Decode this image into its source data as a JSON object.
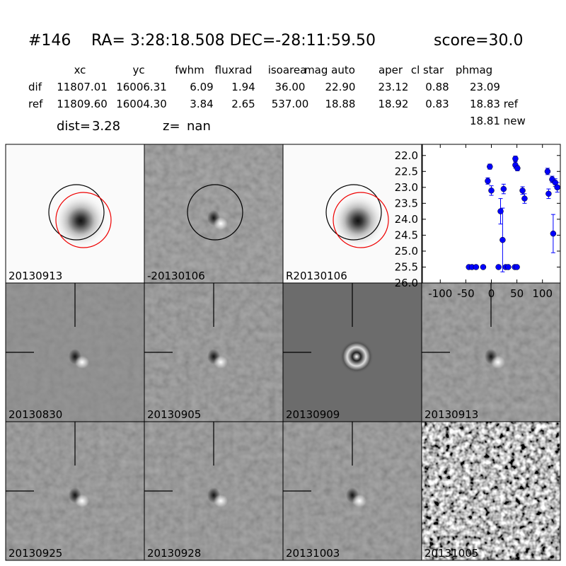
{
  "header": {
    "id": "#146",
    "coords": "RA= 3:28:18.508 DEC=-28:11:59.50",
    "score": "score=30.0"
  },
  "table": {
    "columns": [
      "xc",
      "yc",
      "fwhm",
      "fluxrad",
      "isoarea",
      "mag auto",
      "aper",
      "cl star",
      "phmag"
    ],
    "rows": [
      {
        "label": "dif",
        "values": [
          "11807.01",
          "16006.31",
          "6.09",
          "1.94",
          "36.00",
          "22.90",
          "23.12",
          "0.88",
          "23.09"
        ]
      },
      {
        "label": "ref",
        "values": [
          "11809.60",
          "16004.30",
          "3.84",
          "2.65",
          "537.00",
          "18.88",
          "18.92",
          "0.83",
          "18.83 ref"
        ]
      }
    ],
    "extra": "18.81 new"
  },
  "info": {
    "dist_label": "dist=",
    "dist": "3.28",
    "z_label": "z=",
    "z": "nan"
  },
  "panels": [
    {
      "label": "20130913"
    },
    {
      "label": "-20130106"
    },
    {
      "label": "R20130106"
    },
    {
      "label": "20130830"
    },
    {
      "label": "20130905"
    },
    {
      "label": "20130909"
    },
    {
      "label": "20130913",
      "label_color": "#ff0000"
    },
    {
      "label": "20130925"
    },
    {
      "label": "20130928"
    },
    {
      "label": "20131003"
    },
    {
      "label": "20131005"
    }
  ],
  "chart_data": {
    "type": "scatter",
    "color": "#0000ff",
    "x": [
      -44,
      -38,
      -30,
      -16,
      -7,
      -3,
      0,
      14,
      18,
      22,
      24,
      28,
      33,
      46,
      47,
      47,
      50,
      51,
      61,
      65,
      110,
      112,
      119,
      121,
      125,
      129
    ],
    "values": [
      25.5,
      25.5,
      25.5,
      25.5,
      22.8,
      22.35,
      23.1,
      25.5,
      23.75,
      24.65,
      23.05,
      25.5,
      25.5,
      25.5,
      22.1,
      22.3,
      25.5,
      22.4,
      23.1,
      23.35,
      22.5,
      23.2,
      22.75,
      24.45,
      22.85,
      23.0
    ],
    "errors": [
      0.05,
      0.05,
      0.05,
      0.05,
      0.1,
      0.08,
      0.15,
      0.05,
      0.4,
      1.0,
      0.15,
      0.05,
      0.05,
      0.05,
      0.08,
      0.1,
      0.05,
      0.08,
      0.12,
      0.15,
      0.1,
      0.15,
      0.1,
      0.6,
      0.12,
      0.15
    ],
    "xlim": [
      -135,
      135
    ],
    "xticks": [
      -100,
      -50,
      0,
      50,
      100
    ],
    "ylim": [
      26.0,
      21.65
    ],
    "y_inverted": true,
    "yticks": [
      {
        "value": 22,
        "label": "22.0"
      },
      {
        "value": 22.5,
        "label": "22.5"
      },
      {
        "value": 23,
        "label": "23.0"
      },
      {
        "value": 23.5,
        "label": "23.5"
      },
      {
        "value": 24,
        "label": "24.0"
      },
      {
        "value": 24.5,
        "label": "24.5"
      },
      {
        "value": 25,
        "label": "25.0"
      },
      {
        "value": 25.5,
        "label": "25.5"
      },
      {
        "value": 26,
        "label": "26.0"
      }
    ]
  }
}
